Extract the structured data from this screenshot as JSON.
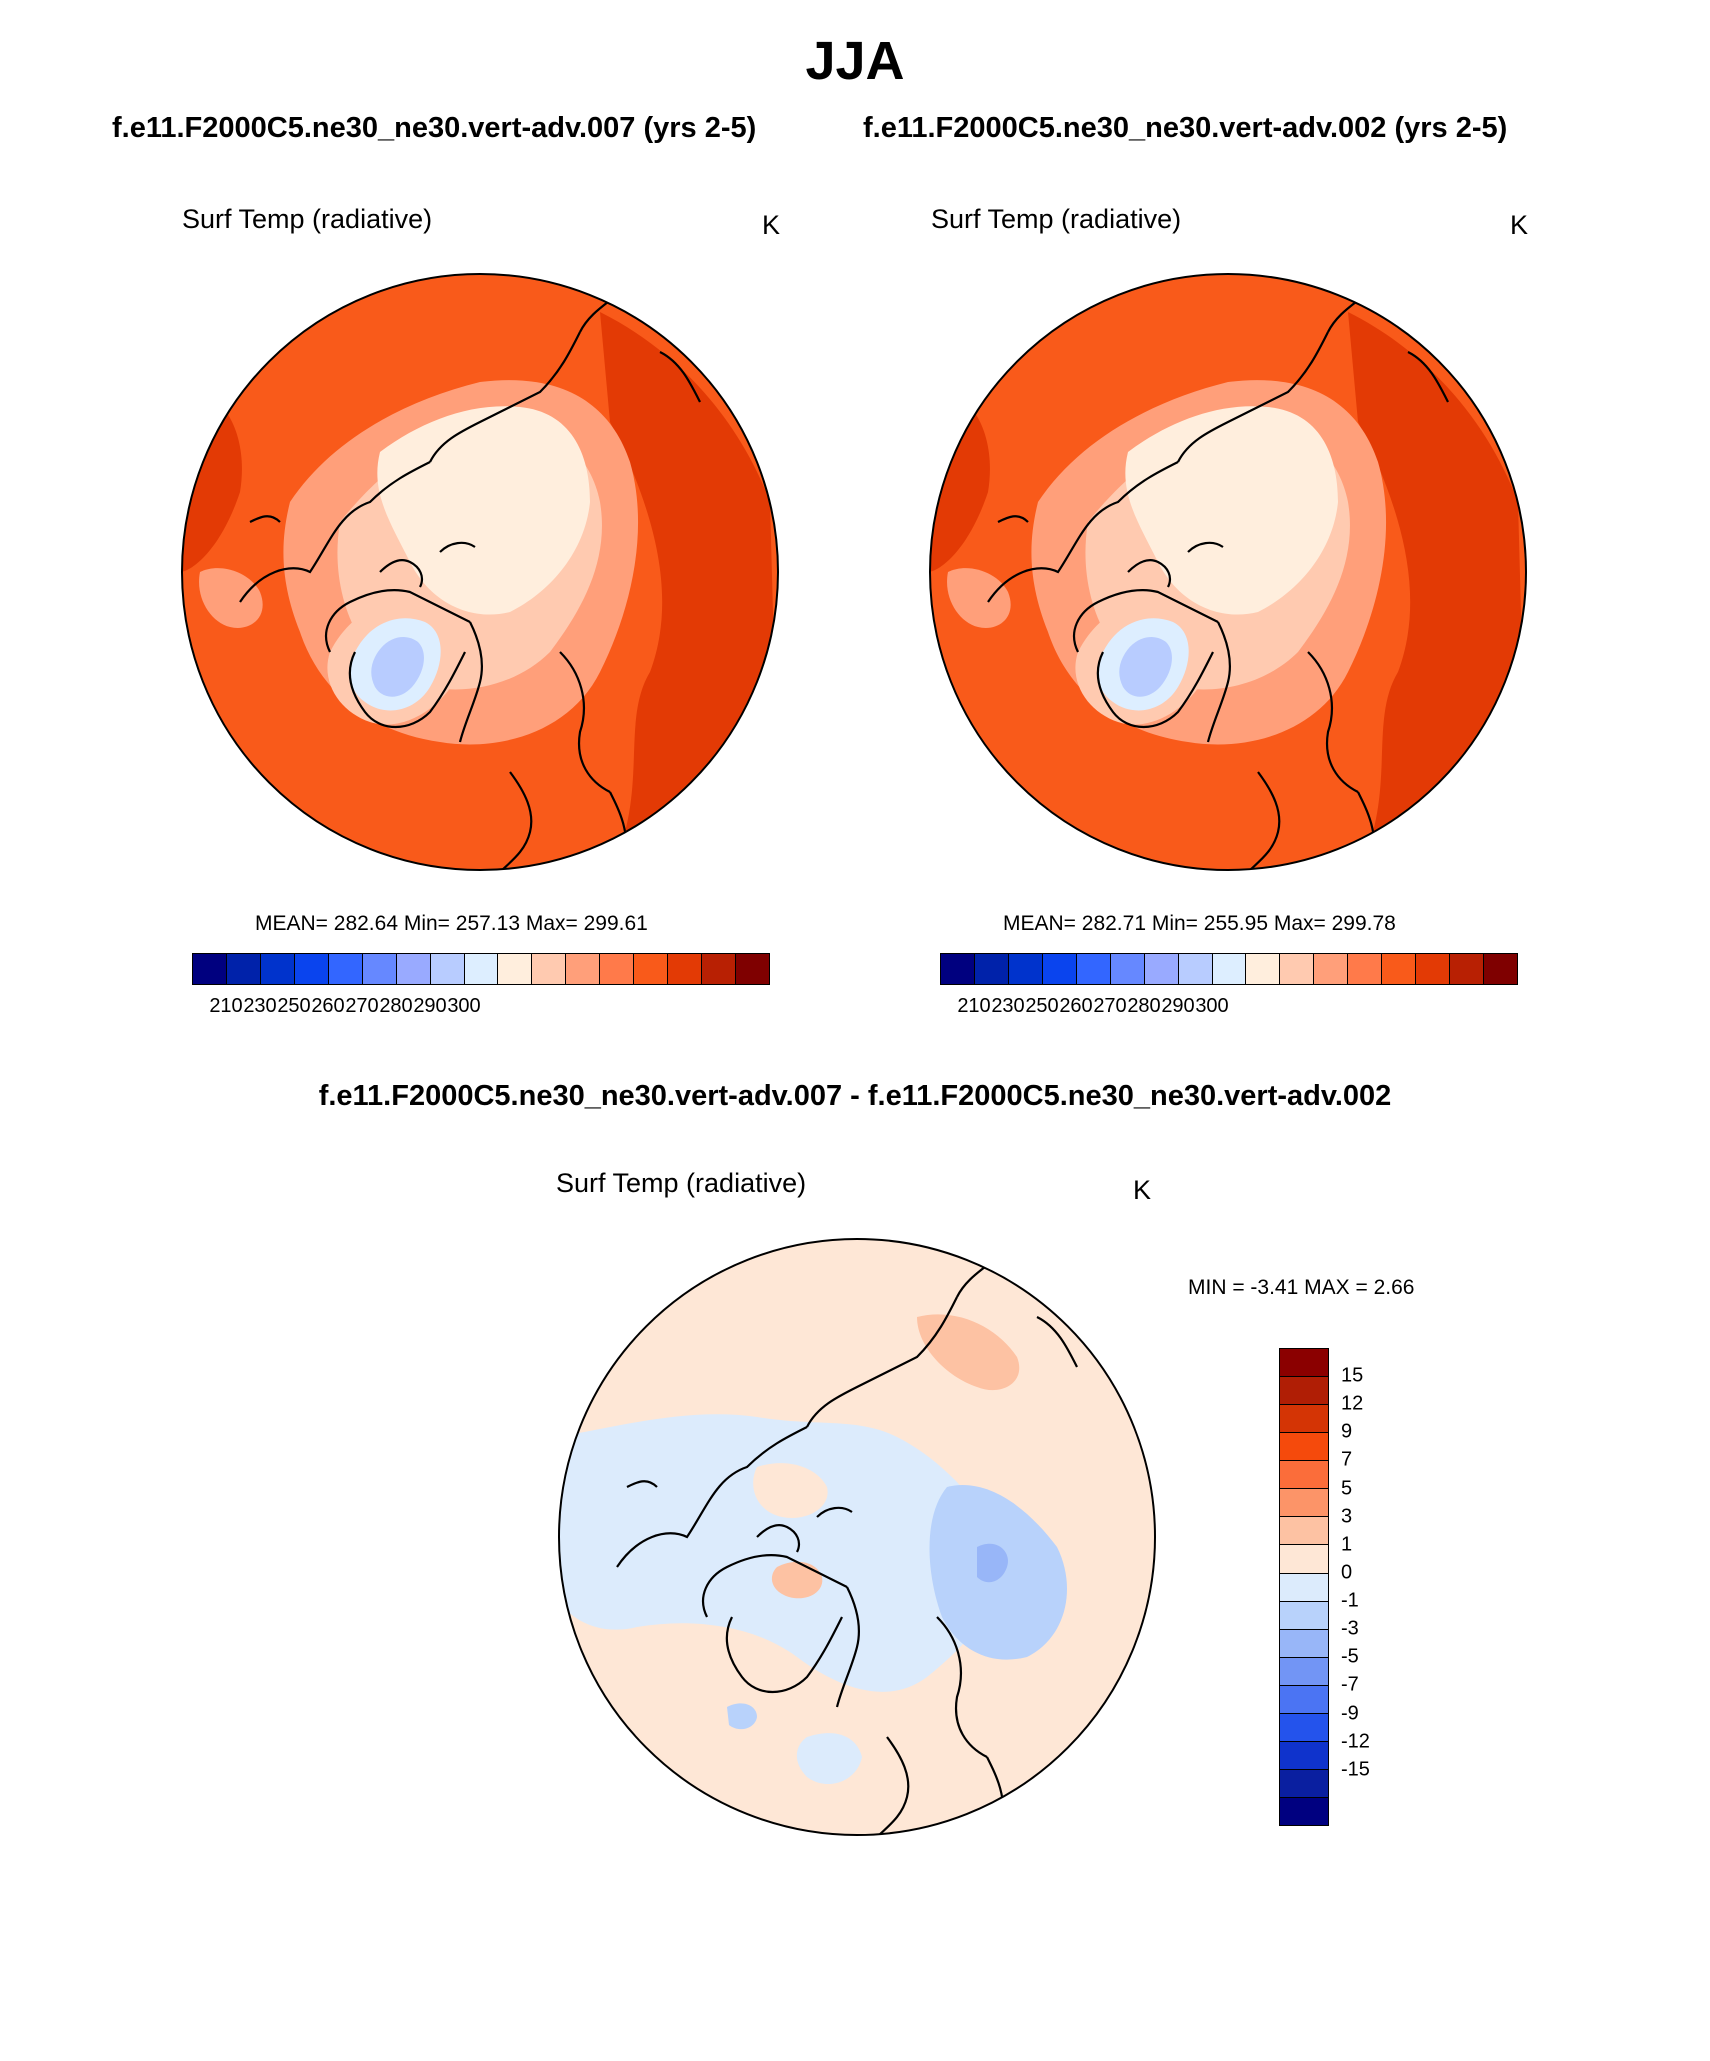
{
  "season": "JJA",
  "titles": {
    "case_a": "f.e11.F2000C5.ne30_ne30.vert-adv.007 (yrs 2-5)",
    "case_b": "f.e11.F2000C5.ne30_ne30.vert-adv.002 (yrs 2-5)",
    "difference": "f.e11.F2000C5.ne30_ne30.vert-adv.007 - f.e11.F2000C5.ne30_ne30.vert-adv.002"
  },
  "panels": {
    "left": {
      "variable": "Surf Temp (radiative)",
      "units": "K",
      "stats": "MEAN= 282.64  Min= 257.13  Max= 299.61",
      "mean": 282.64,
      "min": 257.13,
      "max": 299.61
    },
    "right": {
      "variable": "Surf Temp (radiative)",
      "units": "K",
      "stats": "MEAN= 282.71  Min= 255.95  Max= 299.78",
      "mean": 282.71,
      "min": 255.95,
      "max": 299.78
    },
    "diff": {
      "variable": "Surf Temp (radiative)",
      "units": "K",
      "stats": "MIN =  -3.41 MAX =   2.66",
      "min": -3.41,
      "max": 2.66
    }
  },
  "absolute_colorbar": {
    "colors": [
      "#00007f",
      "#0022aa",
      "#0033cc",
      "#0a44ee",
      "#3366ff",
      "#6688ff",
      "#99aaff",
      "#b8ccff",
      "#ddeeff",
      "#ffeedd",
      "#ffcab0",
      "#ff9f7a",
      "#ff7a4a",
      "#f95a1a",
      "#e33a05",
      "#b82003",
      "#7f0000"
    ],
    "tick_labels": [
      "210",
      "230",
      "250",
      "260",
      "270",
      "280",
      "290",
      "300"
    ]
  },
  "difference_colorbar": {
    "colors": [
      "#8b0000",
      "#b01e05",
      "#d43405",
      "#f54a0c",
      "#fb6d3a",
      "#fc9468",
      "#fdc2a3",
      "#fee7d6",
      "#dcebfc",
      "#b8d2fb",
      "#98b6f8",
      "#7295f5",
      "#4b74f3",
      "#2453ec",
      "#0f33cc",
      "#0a1fa0",
      "#000080"
    ],
    "tick_labels": [
      "15",
      "12",
      "9",
      "7",
      "5",
      "3",
      "1",
      "0",
      "-1",
      "-3",
      "-5",
      "-7",
      "-9",
      "-12",
      "-15"
    ]
  },
  "map_colors": {
    "warmest": "#e33a05",
    "warm": "#f95a1a",
    "mild": "#ff7a4a",
    "cool": "#ff9f7a",
    "cold": "#ffcab0",
    "near_freezing": "#ffeedd",
    "very_cold": "#ddeeff",
    "coldest": "#b8ccff",
    "diff_background": "#fee7d6",
    "diff_neg_small": "#dcebfc",
    "diff_neg": "#b8d2fb",
    "diff_neg_more": "#98b6f8",
    "diff_pos": "#fdc2a3",
    "coast": "#000000"
  }
}
